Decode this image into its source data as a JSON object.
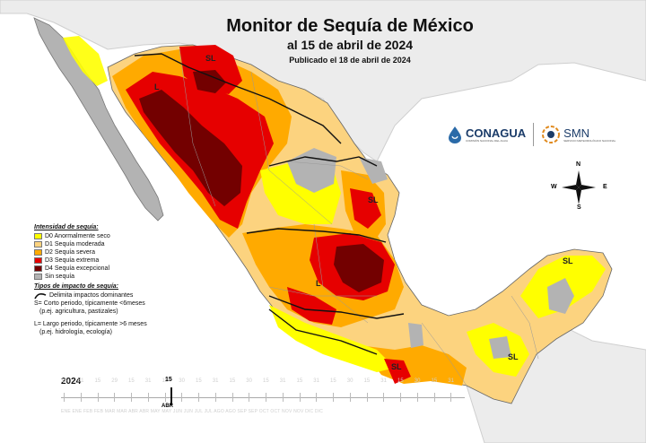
{
  "title": "Monitor de Sequía de México",
  "subtitle": "al 15 de abril de 2024",
  "published": "Publicado el 18 de abril de 2024",
  "logos": {
    "conagua": "CONAGUA",
    "conagua_sub": "COMISIÓN NACIONAL DEL AGUA",
    "smn": "SMN",
    "smn_sub": "SERVICIO METEOROLÓGICO NACIONAL"
  },
  "compass": {
    "n": "N",
    "s": "S",
    "e": "E",
    "w": "W"
  },
  "legend": {
    "intensity_title": "Intensidad de sequía:",
    "items": [
      {
        "label": "D0 Anormalmente seco",
        "color": "#ffff00"
      },
      {
        "label": "D1 Sequía moderada",
        "color": "#fcd37f"
      },
      {
        "label": "D2 Sequía severa",
        "color": "#ffaa00"
      },
      {
        "label": "D3 Sequía extrema",
        "color": "#e60000"
      },
      {
        "label": "D4 Sequía excepcional",
        "color": "#730000"
      },
      {
        "label": "Sin sequía",
        "color": "#b3b3b3"
      }
    ],
    "impact_title": "Tipos de impacto de sequía:",
    "impact_line": "Delimita impactos dominantes",
    "short_term": "S= Corto periodo, típicamente <6meses",
    "short_term_ex": "(p.ej. agricultura, pastizales)",
    "long_term": "L= Largo periodo, típicamente >6 meses",
    "long_term_ex": "(p.ej. hidrología, ecología)"
  },
  "map_labels": {
    "sl": "SL",
    "l": "L"
  },
  "timeline": {
    "year": "2024",
    "current_day": "15",
    "current_month": "ABR",
    "ghost_days": [
      "15",
      "31",
      "15",
      "29",
      "15",
      "31",
      "15",
      "30",
      "15",
      "31",
      "15",
      "30",
      "15",
      "31",
      "15",
      "31",
      "15",
      "30",
      "15",
      "31",
      "15",
      "30",
      "15",
      "31"
    ],
    "ghost_months": "ENE ENE FEB FEB MAR MAR ABR ABR MAY MAY JUN JUN JUL JUL AGO AGO SEP SEP OCT OCT NOV NOV DIC DIC"
  }
}
